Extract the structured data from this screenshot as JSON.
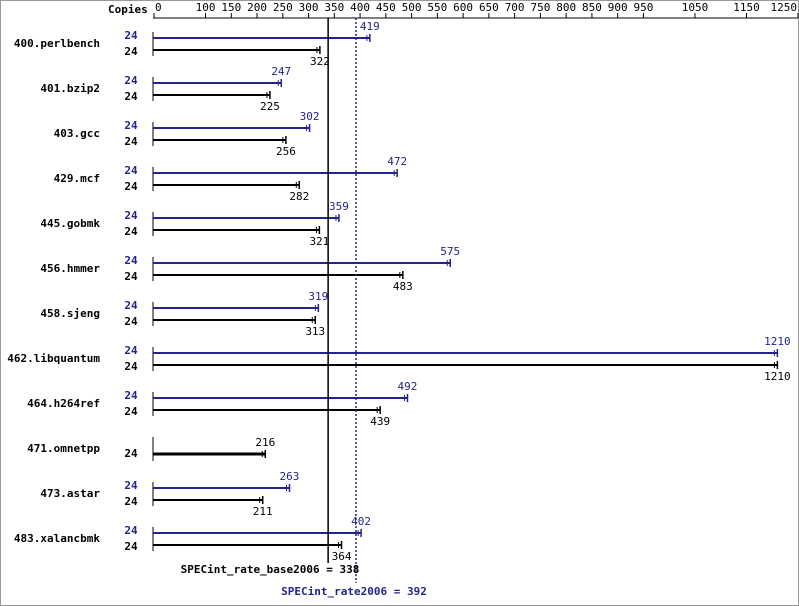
{
  "chart_data": {
    "type": "bar",
    "orientation": "horizontal",
    "x_axis_label": "Copies",
    "categories": [
      "400.perlbench",
      "401.bzip2",
      "403.gcc",
      "429.mcf",
      "445.gobmk",
      "456.hmmer",
      "458.sjeng",
      "462.libquantum",
      "464.h264ref",
      "471.omnetpp",
      "473.astar",
      "483.xalancbmk"
    ],
    "series": [
      {
        "color": "#23238e",
        "copies": [
          24,
          24,
          24,
          24,
          24,
          24,
          24,
          24,
          24,
          null,
          24,
          24
        ],
        "values": [
          419,
          247,
          302,
          472,
          359,
          575,
          319,
          1210,
          492,
          null,
          263,
          402
        ]
      },
      {
        "color": "#000000",
        "copies": [
          24,
          24,
          24,
          24,
          24,
          24,
          24,
          24,
          24,
          24,
          24,
          24
        ],
        "values": [
          322,
          225,
          256,
          282,
          321,
          483,
          313,
          1210,
          439,
          216,
          211,
          364
        ]
      }
    ],
    "reference_lines": [
      {
        "value": 338,
        "label": "SPECint_rate_base2006 = 338",
        "color": "#000000",
        "style": "solid"
      },
      {
        "value": 392,
        "label": "SPECint_rate2006 = 392",
        "color": "#23238e",
        "style": "dotted"
      }
    ],
    "xlim": [
      0,
      1250
    ],
    "xticks": [
      0,
      100,
      150,
      200,
      250,
      300,
      350,
      400,
      450,
      500,
      550,
      600,
      650,
      700,
      750,
      800,
      850,
      900,
      950,
      1050,
      1150,
      1250
    ]
  }
}
